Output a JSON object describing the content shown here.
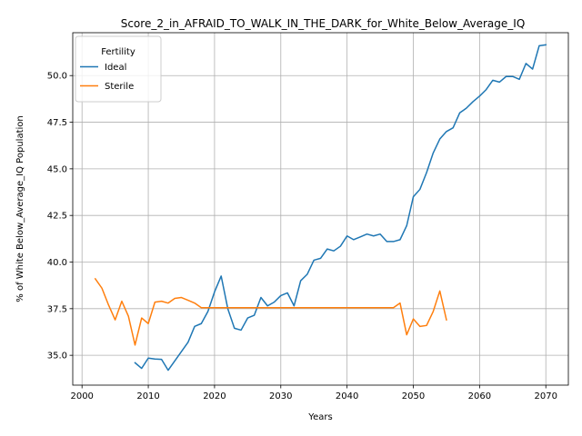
{
  "chart_data": {
    "type": "line",
    "title": "Score_2_in_AFRAID_TO_WALK_IN_THE_DARK_for_White_Below_Average_IQ",
    "xlabel": "Years",
    "ylabel": "% of White Below_Average_IQ Population",
    "xlim": [
      1998.6,
      2073.4
    ],
    "ylim": [
      33.4,
      52.3
    ],
    "xticks": [
      2000,
      2010,
      2020,
      2030,
      2040,
      2050,
      2060,
      2070
    ],
    "yticks": [
      35.0,
      37.5,
      40.0,
      42.5,
      45.0,
      47.5,
      50.0
    ],
    "ytick_labels": [
      "35.0",
      "37.5",
      "40.0",
      "42.5",
      "45.0",
      "47.5",
      "50.0"
    ],
    "grid": true,
    "legend": {
      "title": "Fertility",
      "placement": "upper-left"
    },
    "series": [
      {
        "name": "Ideal",
        "color": "#1f77b4",
        "points": [
          [
            2008,
            34.6
          ],
          [
            2009,
            34.3
          ],
          [
            2010,
            34.85
          ],
          [
            2011,
            34.8
          ],
          [
            2012,
            34.78
          ],
          [
            2013,
            34.2
          ],
          [
            2014,
            34.7
          ],
          [
            2015,
            35.2
          ],
          [
            2016,
            35.7
          ],
          [
            2017,
            36.55
          ],
          [
            2018,
            36.7
          ],
          [
            2019,
            37.35
          ],
          [
            2020,
            38.4
          ],
          [
            2021,
            39.25
          ],
          [
            2022,
            37.5
          ],
          [
            2023,
            36.45
          ],
          [
            2024,
            36.35
          ],
          [
            2025,
            37.0
          ],
          [
            2026,
            37.15
          ],
          [
            2027,
            38.1
          ],
          [
            2028,
            37.65
          ],
          [
            2029,
            37.85
          ],
          [
            2030,
            38.2
          ],
          [
            2031,
            38.35
          ],
          [
            2032,
            37.65
          ],
          [
            2033,
            39.0
          ],
          [
            2034,
            39.35
          ],
          [
            2035,
            40.1
          ],
          [
            2036,
            40.2
          ],
          [
            2037,
            40.7
          ],
          [
            2038,
            40.6
          ],
          [
            2039,
            40.85
          ],
          [
            2040,
            41.4
          ],
          [
            2041,
            41.2
          ],
          [
            2042,
            41.35
          ],
          [
            2043,
            41.5
          ],
          [
            2044,
            41.4
          ],
          [
            2045,
            41.5
          ],
          [
            2046,
            41.1
          ],
          [
            2047,
            41.1
          ],
          [
            2048,
            41.2
          ],
          [
            2049,
            41.95
          ],
          [
            2050,
            43.5
          ],
          [
            2051,
            43.9
          ],
          [
            2052,
            44.8
          ],
          [
            2053,
            45.85
          ],
          [
            2054,
            46.6
          ],
          [
            2055,
            47.0
          ],
          [
            2056,
            47.2
          ],
          [
            2057,
            48.0
          ],
          [
            2058,
            48.25
          ],
          [
            2059,
            48.6
          ],
          [
            2060,
            48.9
          ],
          [
            2061,
            49.25
          ],
          [
            2062,
            49.75
          ],
          [
            2063,
            49.65
          ],
          [
            2064,
            49.95
          ],
          [
            2065,
            49.95
          ],
          [
            2066,
            49.8
          ],
          [
            2067,
            50.65
          ],
          [
            2068,
            50.35
          ],
          [
            2069,
            51.6
          ],
          [
            2070,
            51.65
          ]
        ]
      },
      {
        "name": "Sterile",
        "color": "#ff7f0e",
        "points": [
          [
            2002,
            39.1
          ],
          [
            2003,
            38.6
          ],
          [
            2004,
            37.7
          ],
          [
            2005,
            36.9
          ],
          [
            2006,
            37.9
          ],
          [
            2007,
            37.1
          ],
          [
            2008,
            35.55
          ],
          [
            2009,
            37.0
          ],
          [
            2010,
            36.7
          ],
          [
            2011,
            37.85
          ],
          [
            2012,
            37.9
          ],
          [
            2013,
            37.8
          ],
          [
            2014,
            38.05
          ],
          [
            2015,
            38.1
          ],
          [
            2016,
            37.95
          ],
          [
            2017,
            37.8
          ],
          [
            2018,
            37.55
          ],
          [
            2019,
            37.55
          ],
          [
            2020,
            37.55
          ],
          [
            2021,
            37.55
          ],
          [
            2022,
            37.55
          ],
          [
            2023,
            37.55
          ],
          [
            2024,
            37.55
          ],
          [
            2025,
            37.55
          ],
          [
            2026,
            37.55
          ],
          [
            2027,
            37.55
          ],
          [
            2028,
            37.55
          ],
          [
            2029,
            37.55
          ],
          [
            2030,
            37.55
          ],
          [
            2031,
            37.55
          ],
          [
            2032,
            37.55
          ],
          [
            2033,
            37.55
          ],
          [
            2034,
            37.55
          ],
          [
            2035,
            37.55
          ],
          [
            2036,
            37.55
          ],
          [
            2037,
            37.55
          ],
          [
            2038,
            37.55
          ],
          [
            2039,
            37.55
          ],
          [
            2040,
            37.55
          ],
          [
            2041,
            37.55
          ],
          [
            2042,
            37.55
          ],
          [
            2043,
            37.55
          ],
          [
            2044,
            37.55
          ],
          [
            2045,
            37.55
          ],
          [
            2046,
            37.55
          ],
          [
            2047,
            37.55
          ],
          [
            2048,
            37.8
          ],
          [
            2049,
            36.1
          ],
          [
            2050,
            36.95
          ],
          [
            2051,
            36.55
          ],
          [
            2052,
            36.6
          ],
          [
            2053,
            37.35
          ],
          [
            2054,
            38.45
          ],
          [
            2055,
            36.9
          ]
        ]
      }
    ]
  }
}
